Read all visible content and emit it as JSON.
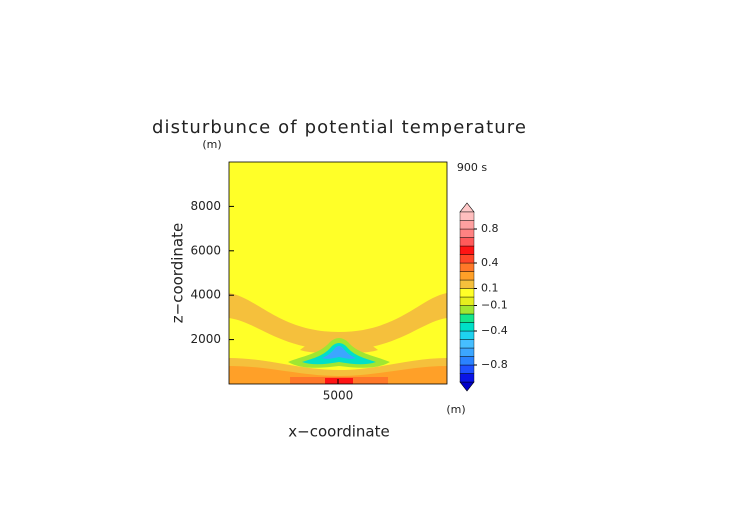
{
  "chart_data": {
    "type": "contour",
    "title": "disturbunce of potential temperature",
    "time_label": "900 s",
    "x_label": "x−coordinate",
    "x_unit": "(m)",
    "y_label": "z−coordinate",
    "y_unit": "(m)",
    "xlim": [
      0,
      10000
    ],
    "xticks": [
      5000
    ],
    "ylim": [
      0,
      10000
    ],
    "yticks": [
      2000,
      4000,
      6000,
      8000
    ],
    "colorbar": {
      "levels": [
        -1.0,
        -0.9,
        -0.8,
        -0.7,
        -0.6,
        -0.5,
        -0.4,
        -0.3,
        -0.2,
        -0.1,
        0,
        0.1,
        0.2,
        0.3,
        0.4,
        0.5,
        0.6,
        0.7,
        0.8,
        0.9,
        1.0
      ],
      "colors": [
        "#0a14e6",
        "#1e50ff",
        "#2a82ff",
        "#3ca6ff",
        "#46beff",
        "#1ed2f0",
        "#00e0c8",
        "#14e68c",
        "#a0e632",
        "#e6ee1e",
        "#ffff28",
        "#f5c03c",
        "#ffa028",
        "#ff7828",
        "#ff4628",
        "#ff1414",
        "#ff5a5a",
        "#ff8282",
        "#ffa0a0",
        "#ffbebe"
      ],
      "under_color": "#0000c8",
      "over_color": "#ffc8c8",
      "ticks": [
        {
          "value": -0.8,
          "label": "−0.8"
        },
        {
          "value": -0.4,
          "label": "−0.4"
        },
        {
          "value": -0.1,
          "label": "−0.1"
        },
        0.1,
        0.4,
        0.8
      ]
    }
  }
}
